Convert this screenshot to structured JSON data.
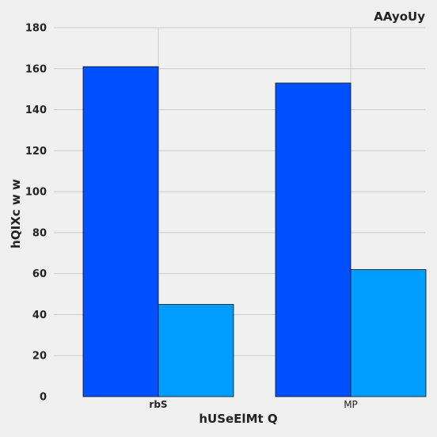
{
  "chart_data": {
    "type": "bar",
    "title": "AAyoUy",
    "xlabel": "hUSeElMt  Q",
    "ylabel": "hQIXc w w",
    "categories": [
      "rbS",
      "MP"
    ],
    "series": [
      {
        "values": [
          161,
          153
        ],
        "color": "#0050ff"
      },
      {
        "values": [
          45,
          62
        ],
        "color": "#009dff"
      }
    ],
    "ylim": [
      0,
      180
    ],
    "yticks": [
      0,
      20,
      40,
      60,
      80,
      100,
      120,
      140,
      160,
      180
    ],
    "grid": true,
    "legend": "none"
  }
}
